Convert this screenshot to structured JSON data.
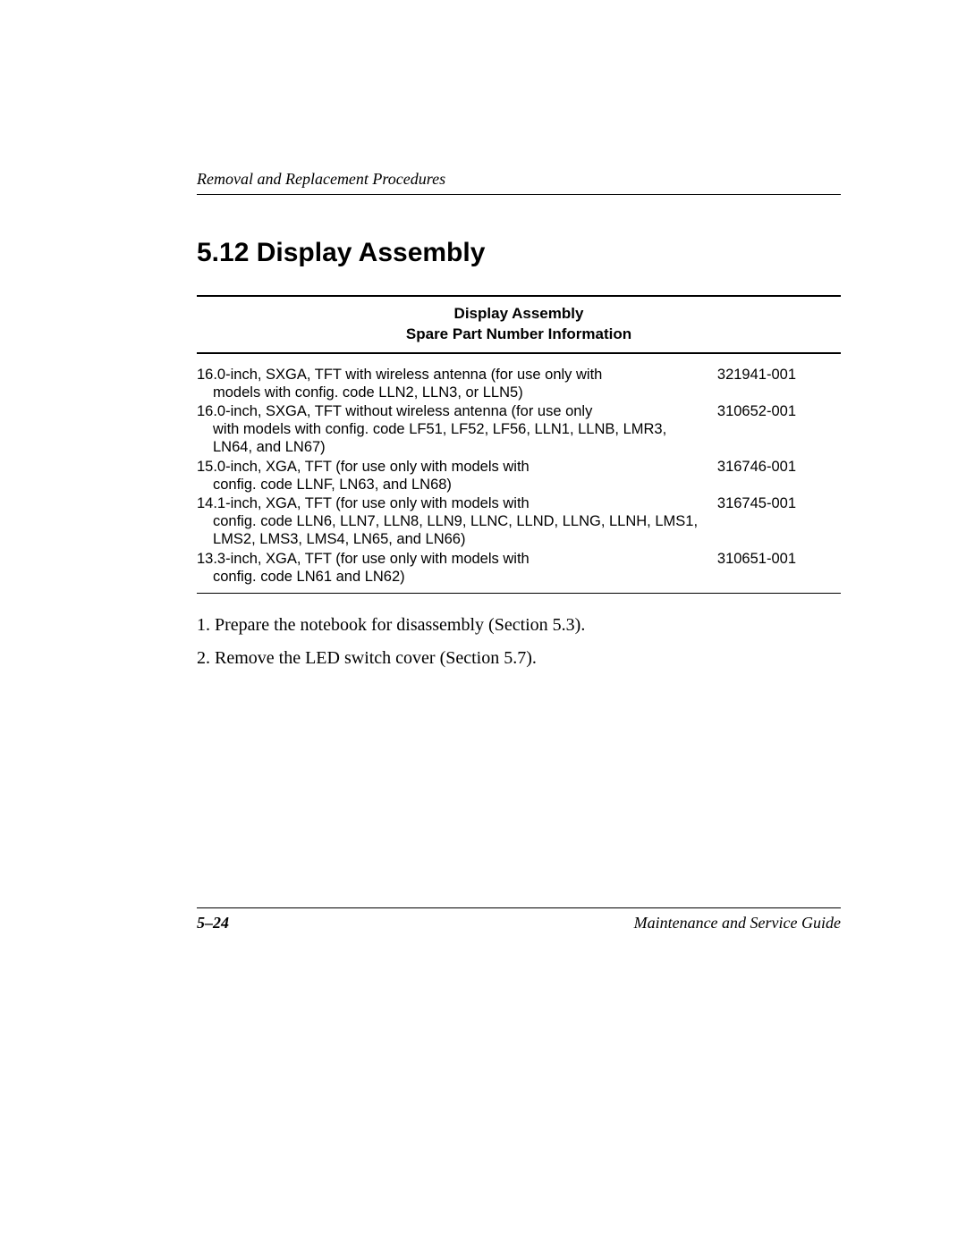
{
  "header": {
    "running_title": "Removal and Replacement Procedures"
  },
  "section": {
    "heading": "5.12 Display Assembly"
  },
  "table": {
    "title_line1": "Display Assembly",
    "title_line2": "Spare Part Number Information",
    "rows": [
      {
        "desc_first": "16.0-inch, SXGA, TFT with wireless antenna (for use only with",
        "desc_rest": "models with config. code LLN2, LLN3, or LLN5)",
        "part": "321941-001"
      },
      {
        "desc_first": "16.0-inch, SXGA, TFT without wireless antenna (for use only",
        "desc_rest": "with models with config. code LF51, LF52, LF56, LLN1, LLNB, LMR3, LN64, and LN67)",
        "part": "310652-001"
      },
      {
        "desc_first": "15.0-inch, XGA, TFT (for use only with models with",
        "desc_rest": "config. code LLNF, LN63, and LN68)",
        "part": "316746-001"
      },
      {
        "desc_first": "14.1-inch, XGA, TFT (for use only with models with",
        "desc_rest": "config. code LLN6, LLN7, LLN8, LLN9, LLNC, LLND, LLNG, LLNH, LMS1, LMS2, LMS3, LMS4, LN65, and LN66)",
        "part": "316745-001"
      },
      {
        "desc_first": "13.3-inch, XGA, TFT (for use only with models with",
        "desc_rest": "config. code LN61 and LN62)",
        "part": "310651-001"
      }
    ]
  },
  "steps": {
    "s1": "1. Prepare the notebook for disassembly (Section 5.3).",
    "s2": "2. Remove the LED switch cover (Section 5.7)."
  },
  "footer": {
    "page": "5–24",
    "guide": "Maintenance and Service Guide"
  }
}
